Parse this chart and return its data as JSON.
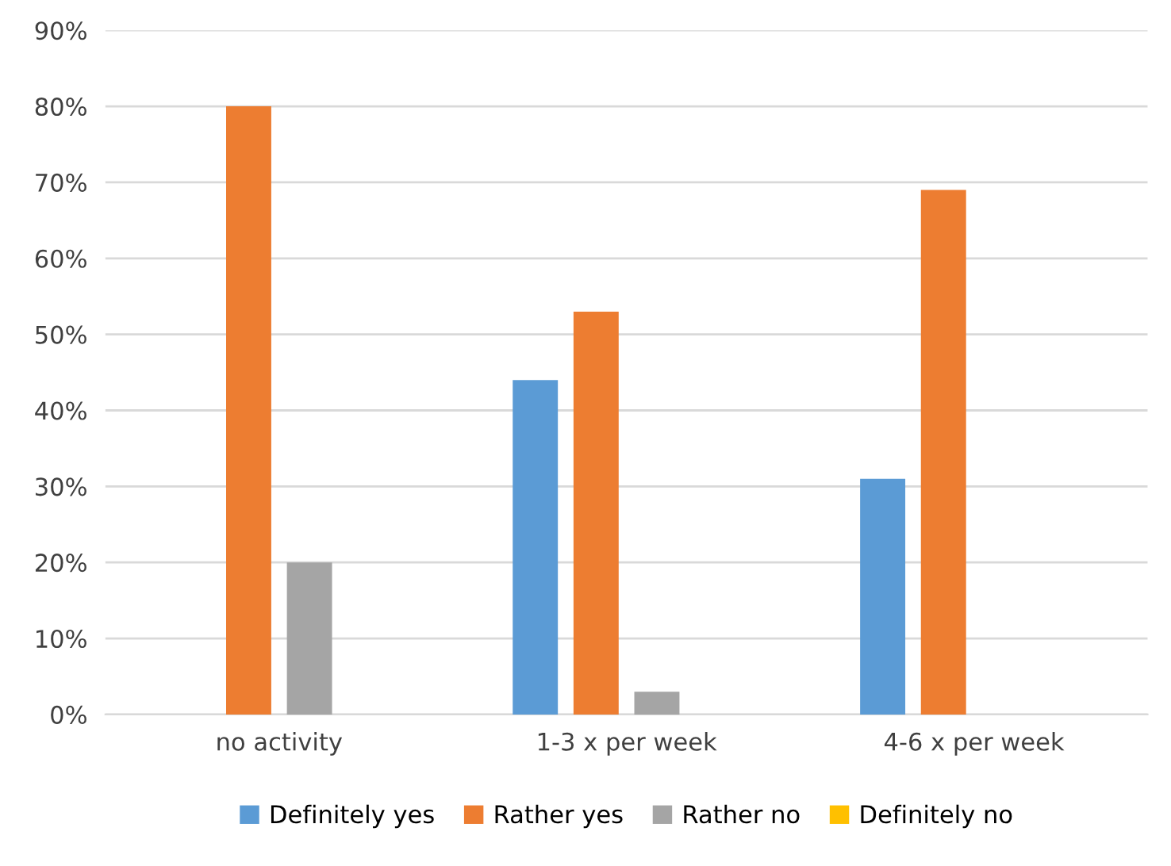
{
  "chart_data": {
    "type": "bar",
    "categories": [
      "no activity",
      "1-3 x per week",
      "4-6 x per week"
    ],
    "series": [
      {
        "name": "Definitely yes",
        "color": "#5b9bd5",
        "values": [
          0,
          44,
          31
        ]
      },
      {
        "name": "Rather yes",
        "color": "#ed7d31",
        "values": [
          80,
          53,
          69
        ]
      },
      {
        "name": "Rather no",
        "color": "#a5a5a5",
        "values": [
          20,
          3,
          0
        ]
      },
      {
        "name": "Definitely no",
        "color": "#ffc000",
        "values": [
          0,
          0,
          0
        ]
      }
    ],
    "ylim": [
      0,
      90
    ],
    "yticks": [
      {
        "value": 0,
        "label": "0%"
      },
      {
        "value": 10,
        "label": "10%"
      },
      {
        "value": 20,
        "label": "20%"
      },
      {
        "value": 30,
        "label": "30%"
      },
      {
        "value": 40,
        "label": "40%"
      },
      {
        "value": 50,
        "label": "50%"
      },
      {
        "value": 60,
        "label": "60%"
      },
      {
        "value": 70,
        "label": "70%"
      },
      {
        "value": 80,
        "label": "80%"
      },
      {
        "value": 90,
        "label": "90%"
      }
    ],
    "grid": "y",
    "legend": "bottom"
  }
}
